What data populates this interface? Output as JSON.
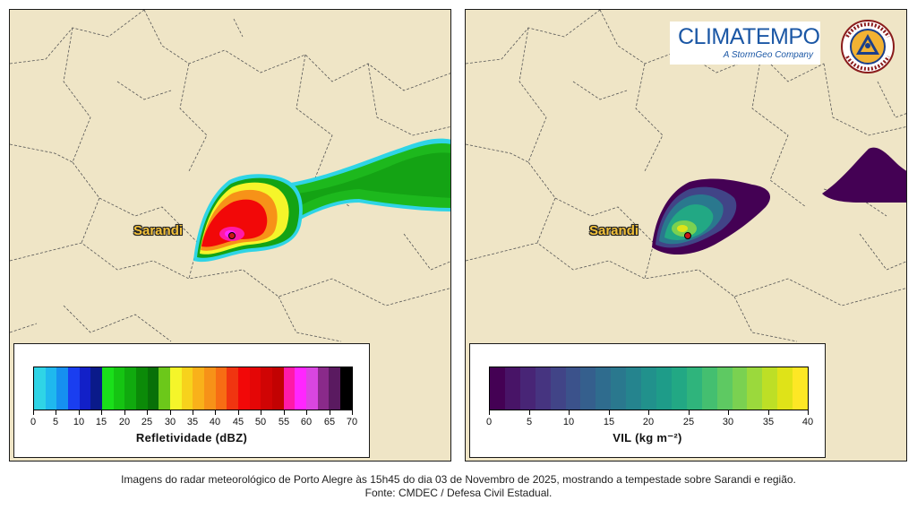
{
  "left_panel": {
    "city_label": "Sarandi",
    "colorbar": {
      "title": "Refletividade (dBZ)",
      "ticks": [
        "0",
        "5",
        "10",
        "15",
        "20",
        "25",
        "30",
        "35",
        "40",
        "45",
        "50",
        "55",
        "60",
        "65",
        "70"
      ],
      "min": 0,
      "max": 70,
      "colors": [
        "#2fd4e6",
        "#1fb8ee",
        "#1690f0",
        "#1a3ef0",
        "#1220c8",
        "#0a1a8a",
        "#1adf1a",
        "#15c412",
        "#10aa0e",
        "#0b8a08",
        "#087008",
        "#6cc81a",
        "#f5f52a",
        "#f7d21c",
        "#f9b11a",
        "#f79218",
        "#f76d14",
        "#f03510",
        "#f20808",
        "#e40606",
        "#d00404",
        "#c20202",
        "#ff1aa8",
        "#ff26ff",
        "#d946e0",
        "#8a2a8a",
        "#5a1a60",
        "#000000"
      ]
    }
  },
  "right_panel": {
    "city_label": "Sarandi",
    "colorbar": {
      "title": "VIL (kg m⁻²)",
      "ticks": [
        "0",
        "5",
        "10",
        "15",
        "20",
        "25",
        "30",
        "35",
        "40"
      ],
      "min": 0,
      "max": 40,
      "colors": [
        "#440154",
        "#481467",
        "#482576",
        "#463480",
        "#414487",
        "#3b528b",
        "#355f8d",
        "#2f6c8e",
        "#2a788e",
        "#25848e",
        "#21918c",
        "#1e9c89",
        "#22a884",
        "#2fb47c",
        "#44bf70",
        "#5ec962",
        "#7ad151",
        "#9bd93c",
        "#bddf26",
        "#dfe318",
        "#fde725"
      ]
    },
    "logo_climatempo": {
      "brand": "CLIMATEMPO",
      "tagline": "A StormGeo Company"
    },
    "logo_seal": {
      "text": "CASA MILITAR · DEFESA CIVIL RS"
    }
  },
  "caption": {
    "line1": "Imagens do radar meteorológico de Porto Alegre às 15h45 do dia 03 de Novembro de 2025, mostrando a tempestade sobre Sarandi e região.",
    "line2": "Fonte: CMDEC / Defesa Civil Estadual."
  }
}
